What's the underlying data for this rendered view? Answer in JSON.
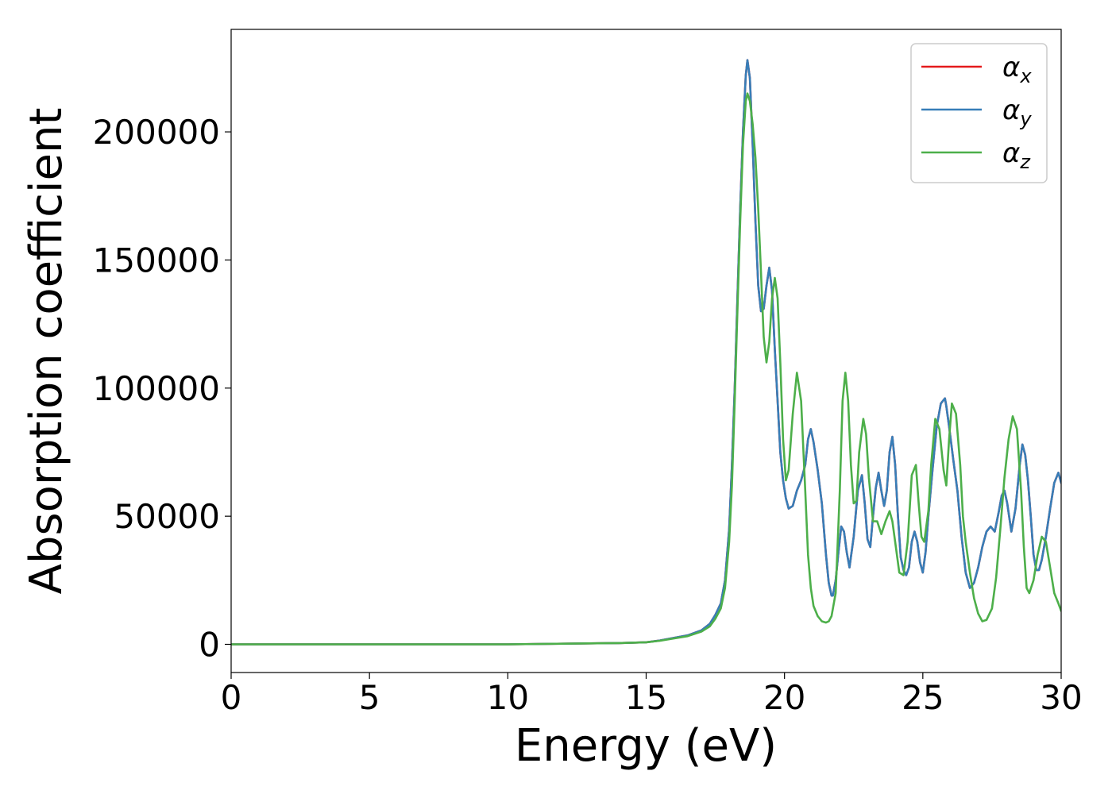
{
  "chart_data": {
    "type": "line",
    "title": "",
    "xlabel": "Energy (eV)",
    "ylabel": "Absorption coefficient",
    "xlim": [
      0,
      30
    ],
    "ylim": [
      -11000,
      240000
    ],
    "xticks": [
      0,
      5,
      10,
      15,
      20,
      25,
      30
    ],
    "xtick_labels": [
      "0",
      "5",
      "10",
      "15",
      "20",
      "25",
      "30"
    ],
    "yticks": [
      0,
      50000,
      100000,
      150000,
      200000
    ],
    "ytick_labels": [
      "0",
      "50000",
      "100000",
      "150000",
      "200000"
    ],
    "grid": false,
    "legend_position": "top-right",
    "series": [
      {
        "name": "α",
        "subscript": "x",
        "color": "#e41a1c",
        "x": [
          0,
          5,
          10,
          14,
          15,
          15.5,
          16,
          16.5,
          17,
          17.3,
          17.5,
          17.7,
          17.85,
          18,
          18.1,
          18.2,
          18.3,
          18.4,
          18.5,
          18.6,
          18.66,
          18.75,
          18.85,
          18.95,
          19.05,
          19.15,
          19.25,
          19.35,
          19.45,
          19.55,
          19.65,
          19.75,
          19.85,
          19.95,
          20.05,
          20.15,
          20.3,
          20.45,
          20.6,
          20.75,
          20.85,
          20.95,
          21.05,
          21.2,
          21.35,
          21.5,
          21.6,
          21.7,
          21.75,
          21.85,
          21.95,
          22.05,
          22.15,
          22.25,
          22.35,
          22.5,
          22.65,
          22.8,
          22.9,
          23,
          23.1,
          23.2,
          23.3,
          23.4,
          23.5,
          23.6,
          23.7,
          23.8,
          23.9,
          24,
          24.1,
          24.2,
          24.3,
          24.4,
          24.5,
          24.6,
          24.7,
          24.8,
          24.9,
          25,
          25.1,
          25.2,
          25.35,
          25.5,
          25.65,
          25.8,
          25.85,
          25.95,
          26.1,
          26.25,
          26.4,
          26.55,
          26.7,
          26.85,
          27,
          27.15,
          27.3,
          27.45,
          27.6,
          27.75,
          27.85,
          27.95,
          28.05,
          28.2,
          28.35,
          28.5,
          28.6,
          28.7,
          28.8,
          28.9,
          29,
          29.1,
          29.2,
          29.3,
          29.45,
          29.6,
          29.75,
          29.9,
          30
        ],
        "y": [
          0,
          0,
          0,
          500,
          800,
          1500,
          2500,
          3500,
          5500,
          8000,
          11500,
          16000,
          25000,
          45000,
          70000,
          100000,
          135000,
          170000,
          200000,
          222000,
          228000,
          221000,
          195000,
          165000,
          140000,
          130000,
          131000,
          140000,
          147000,
          138000,
          115000,
          95000,
          75000,
          64000,
          57000,
          53000,
          54000,
          60000,
          64000,
          70000,
          80000,
          84000,
          79000,
          68000,
          55000,
          35000,
          24000,
          19000,
          19000,
          25000,
          36000,
          46000,
          44000,
          36000,
          30000,
          42000,
          60000,
          66000,
          55000,
          41000,
          38000,
          50000,
          61000,
          67000,
          60000,
          54000,
          60000,
          75000,
          81000,
          70000,
          50000,
          34000,
          29000,
          27000,
          30000,
          40000,
          44000,
          40000,
          32000,
          28000,
          36000,
          50000,
          68000,
          85000,
          94000,
          96000,
          93000,
          85000,
          72000,
          60000,
          42000,
          28000,
          22000,
          24000,
          30000,
          38000,
          44000,
          46000,
          44000,
          52000,
          58000,
          60000,
          55000,
          44000,
          53000,
          70000,
          78000,
          74000,
          64000,
          50000,
          35000,
          29000,
          29000,
          33000,
          42000,
          53000,
          63000,
          67000,
          63000
        ]
      },
      {
        "name": "α",
        "subscript": "y",
        "color": "#377eb8",
        "x": [
          0,
          5,
          10,
          14,
          15,
          15.5,
          16,
          16.5,
          17,
          17.3,
          17.5,
          17.7,
          17.85,
          18,
          18.1,
          18.2,
          18.3,
          18.4,
          18.5,
          18.6,
          18.66,
          18.75,
          18.85,
          18.95,
          19.05,
          19.15,
          19.25,
          19.35,
          19.45,
          19.55,
          19.65,
          19.75,
          19.85,
          19.95,
          20.05,
          20.15,
          20.3,
          20.45,
          20.6,
          20.75,
          20.85,
          20.95,
          21.05,
          21.2,
          21.35,
          21.5,
          21.6,
          21.7,
          21.75,
          21.85,
          21.95,
          22.05,
          22.15,
          22.25,
          22.35,
          22.5,
          22.65,
          22.8,
          22.9,
          23,
          23.1,
          23.2,
          23.3,
          23.4,
          23.5,
          23.6,
          23.7,
          23.8,
          23.9,
          24,
          24.1,
          24.2,
          24.3,
          24.4,
          24.5,
          24.6,
          24.7,
          24.8,
          24.9,
          25,
          25.1,
          25.2,
          25.35,
          25.5,
          25.65,
          25.8,
          25.85,
          25.95,
          26.1,
          26.25,
          26.4,
          26.55,
          26.7,
          26.85,
          27,
          27.15,
          27.3,
          27.45,
          27.6,
          27.75,
          27.85,
          27.95,
          28.05,
          28.2,
          28.35,
          28.5,
          28.6,
          28.7,
          28.8,
          28.9,
          29,
          29.1,
          29.2,
          29.3,
          29.45,
          29.6,
          29.75,
          29.9,
          30
        ],
        "y": [
          0,
          0,
          0,
          500,
          800,
          1500,
          2500,
          3500,
          5500,
          8000,
          11500,
          16000,
          25000,
          45000,
          70000,
          100000,
          135000,
          170000,
          200000,
          222000,
          228000,
          221000,
          195000,
          165000,
          140000,
          130000,
          131000,
          140000,
          147000,
          138000,
          115000,
          95000,
          75000,
          64000,
          57000,
          53000,
          54000,
          60000,
          64000,
          70000,
          80000,
          84000,
          79000,
          68000,
          55000,
          35000,
          24000,
          19000,
          19000,
          25000,
          36000,
          46000,
          44000,
          36000,
          30000,
          42000,
          60000,
          66000,
          55000,
          41000,
          38000,
          50000,
          61000,
          67000,
          60000,
          54000,
          60000,
          75000,
          81000,
          70000,
          50000,
          34000,
          29000,
          27000,
          30000,
          40000,
          44000,
          40000,
          32000,
          28000,
          36000,
          50000,
          68000,
          85000,
          94000,
          96000,
          93000,
          85000,
          72000,
          60000,
          42000,
          28000,
          22000,
          24000,
          30000,
          38000,
          44000,
          46000,
          44000,
          52000,
          58000,
          60000,
          55000,
          44000,
          53000,
          70000,
          78000,
          74000,
          64000,
          50000,
          35000,
          29000,
          29000,
          33000,
          42000,
          53000,
          63000,
          67000,
          63000
        ]
      },
      {
        "name": "α",
        "subscript": "z",
        "color": "#4daf4a",
        "x": [
          0,
          5,
          10,
          14,
          15,
          15.5,
          16,
          16.5,
          17,
          17.3,
          17.5,
          17.7,
          17.85,
          18,
          18.1,
          18.2,
          18.3,
          18.4,
          18.5,
          18.6,
          18.66,
          18.75,
          18.85,
          18.95,
          19.05,
          19.15,
          19.25,
          19.35,
          19.45,
          19.55,
          19.65,
          19.75,
          19.85,
          19.95,
          20.05,
          20.15,
          20.3,
          20.45,
          20.6,
          20.75,
          20.85,
          20.95,
          21.05,
          21.2,
          21.35,
          21.5,
          21.6,
          21.7,
          21.85,
          22,
          22.1,
          22.2,
          22.3,
          22.4,
          22.5,
          22.6,
          22.7,
          22.85,
          22.95,
          23.05,
          23.2,
          23.35,
          23.5,
          23.65,
          23.8,
          23.9,
          24,
          24.15,
          24.3,
          24.45,
          24.6,
          24.75,
          24.85,
          24.95,
          25.05,
          25.2,
          25.3,
          25.45,
          25.6,
          25.75,
          25.85,
          25.95,
          26.05,
          26.2,
          26.35,
          26.45,
          26.55,
          26.7,
          26.85,
          27,
          27.15,
          27.3,
          27.5,
          27.65,
          27.8,
          27.95,
          28.1,
          28.25,
          28.4,
          28.55,
          28.65,
          28.75,
          28.85,
          29,
          29.15,
          29.3,
          29.45,
          29.6,
          29.75,
          29.9,
          30
        ],
        "y": [
          0,
          0,
          0,
          500,
          800,
          1400,
          2300,
          3200,
          5000,
          7000,
          10000,
          14000,
          22000,
          40000,
          62000,
          95000,
          130000,
          165000,
          195000,
          212000,
          215000,
          212000,
          203000,
          190000,
          170000,
          145000,
          120000,
          110000,
          118000,
          135000,
          143000,
          135000,
          110000,
          80000,
          64000,
          68000,
          90000,
          106000,
          95000,
          60000,
          35000,
          22000,
          15000,
          11000,
          9000,
          8500,
          9000,
          11000,
          20000,
          60000,
          95000,
          106000,
          95000,
          70000,
          55000,
          56000,
          75000,
          88000,
          82000,
          65000,
          48000,
          48000,
          43000,
          48000,
          52000,
          48000,
          40000,
          28000,
          27000,
          40000,
          66000,
          70000,
          55000,
          42000,
          40000,
          52000,
          70000,
          88000,
          84000,
          68000,
          62000,
          80000,
          94000,
          90000,
          70000,
          50000,
          40000,
          28000,
          18000,
          12000,
          9000,
          9500,
          14000,
          26000,
          45000,
          65000,
          80000,
          89000,
          84000,
          60000,
          38000,
          22000,
          20000,
          25000,
          35000,
          42000,
          40000,
          30000,
          20000,
          16000,
          13000
        ]
      }
    ]
  }
}
